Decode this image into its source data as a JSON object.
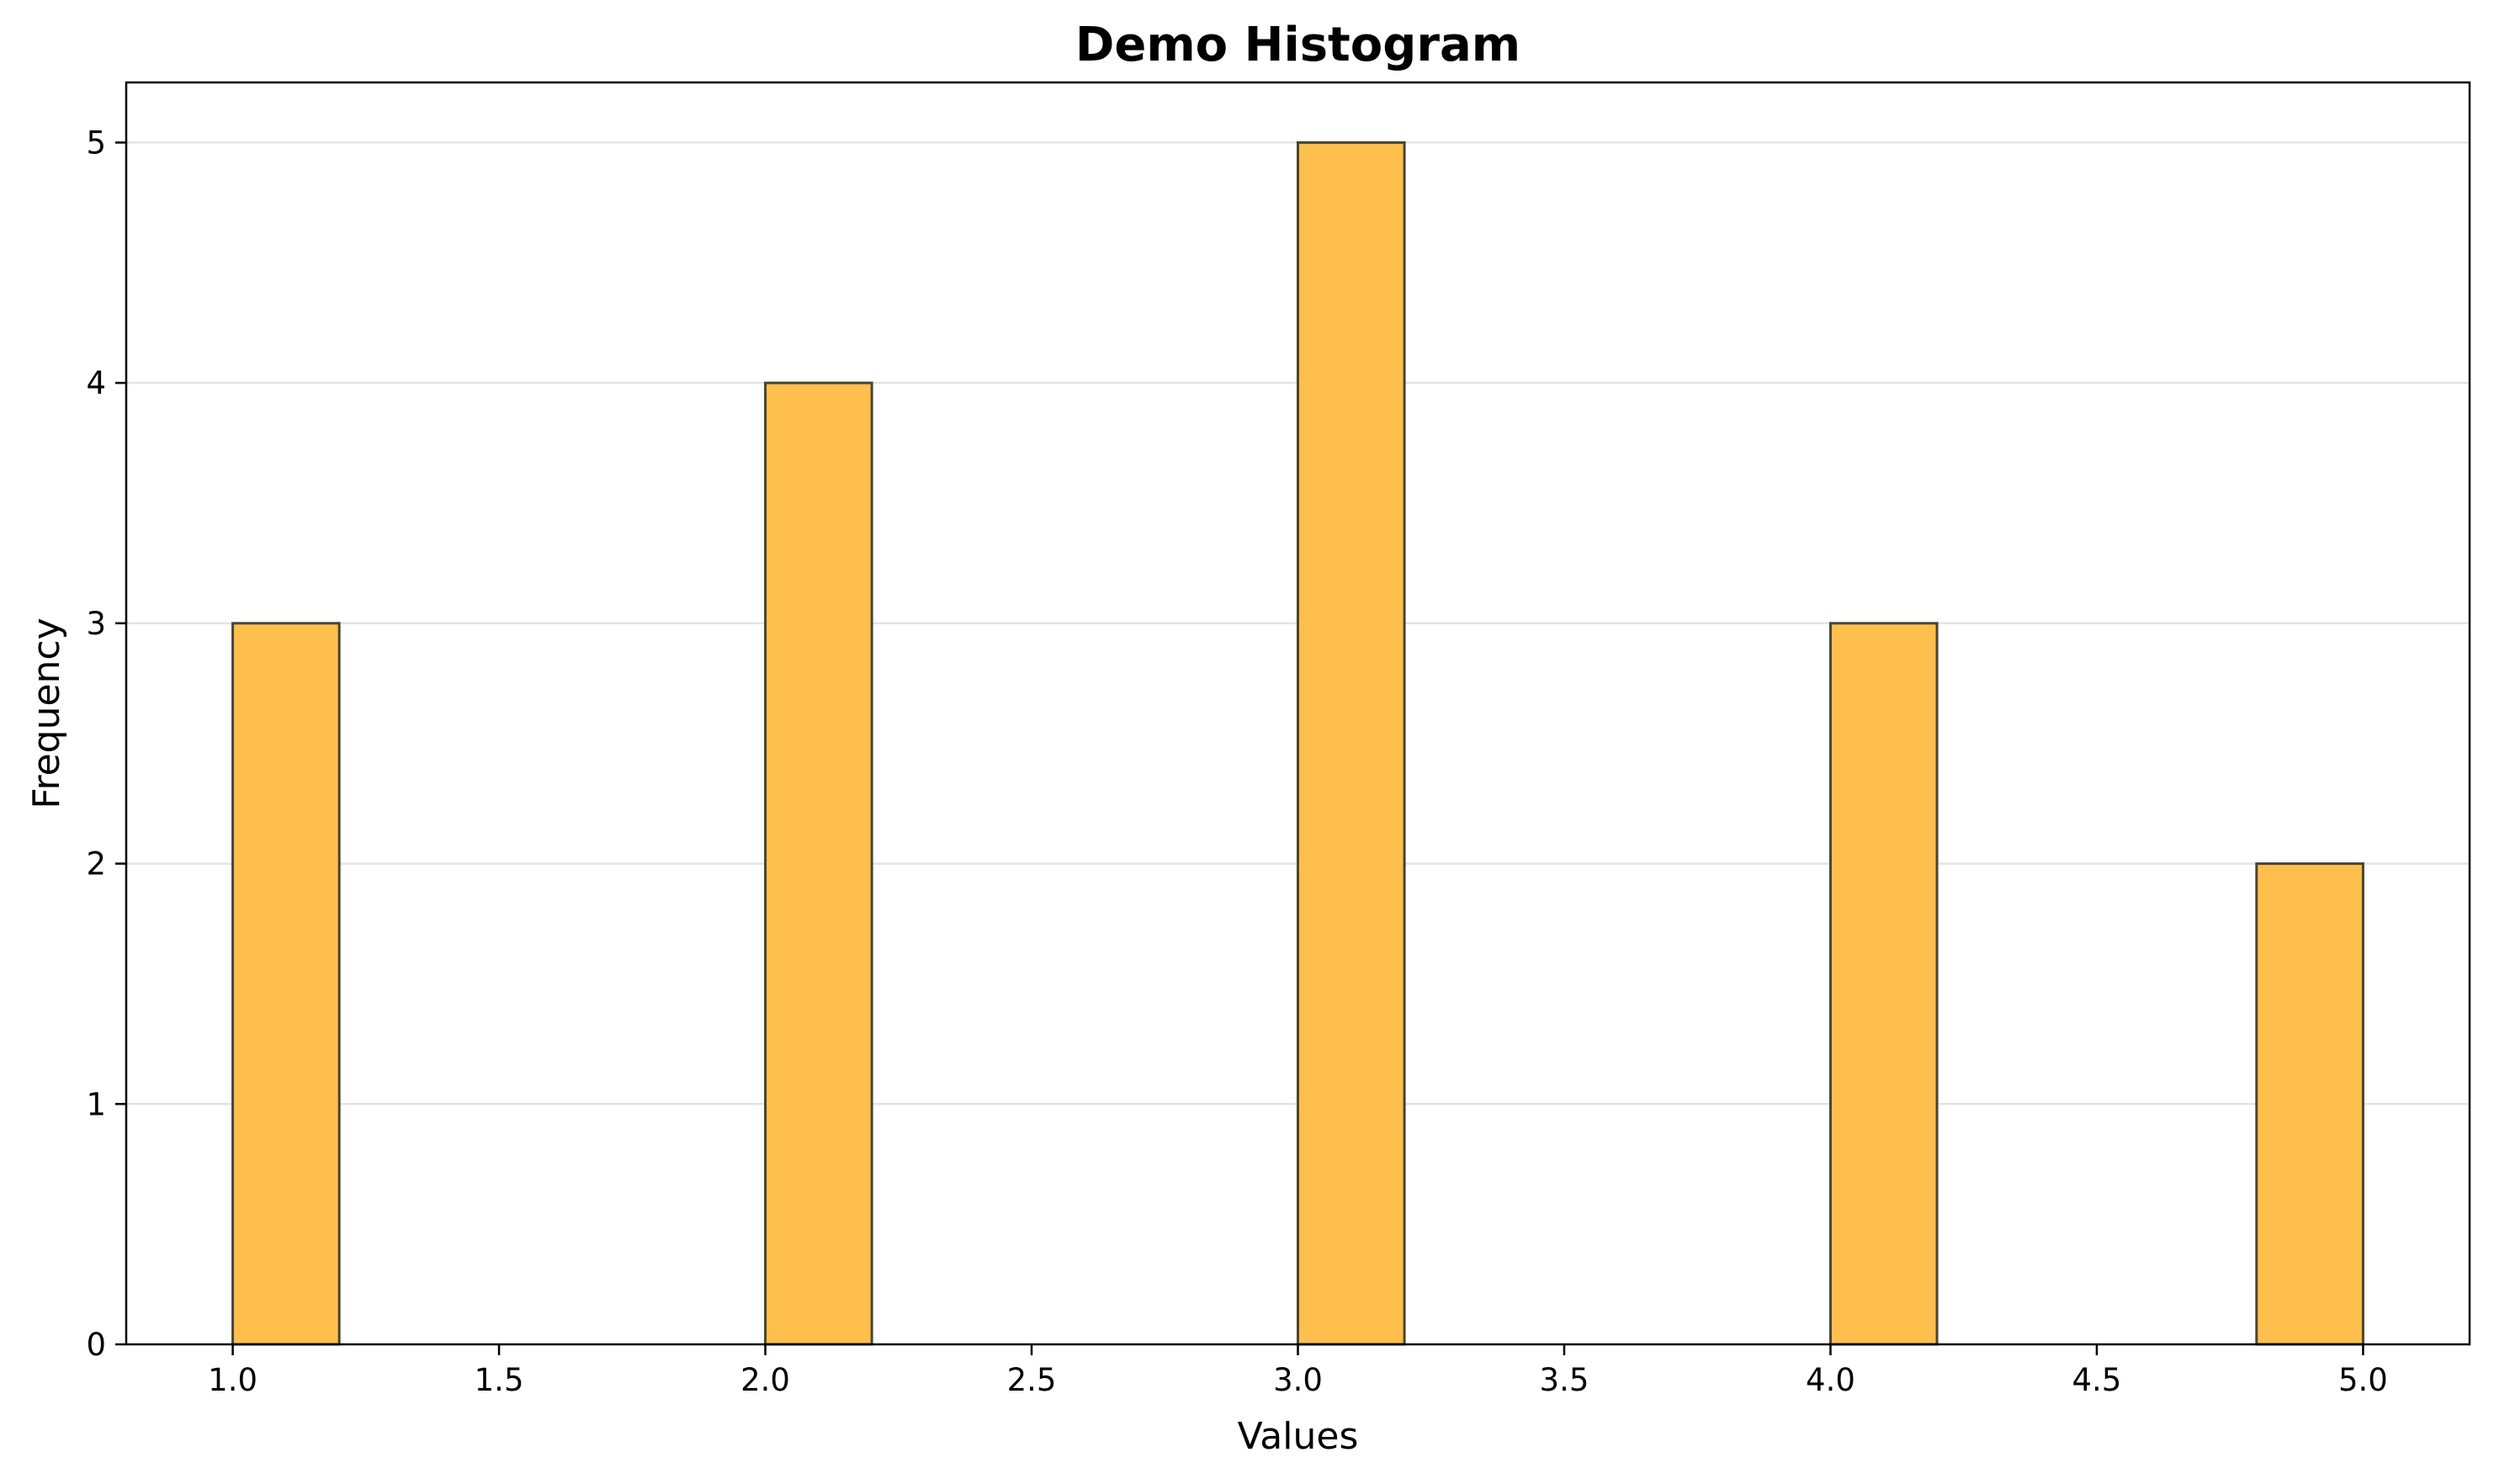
{
  "chart_data": {
    "type": "bar",
    "title": "Demo Histogram",
    "xlabel": "Values",
    "ylabel": "Frequency",
    "xlim": [
      0.8,
      5.2
    ],
    "ylim": [
      0,
      5.25
    ],
    "bin_width": 0.2,
    "bins": [
      {
        "x_start": 1.0,
        "x_end": 1.2,
        "count": 3
      },
      {
        "x_start": 2.0,
        "x_end": 2.2,
        "count": 4
      },
      {
        "x_start": 3.0,
        "x_end": 3.2,
        "count": 5
      },
      {
        "x_start": 4.0,
        "x_end": 4.2,
        "count": 3
      },
      {
        "x_start": 4.8,
        "x_end": 5.0,
        "count": 2
      }
    ],
    "x_ticks": [
      1.0,
      1.5,
      2.0,
      2.5,
      3.0,
      3.5,
      4.0,
      4.5,
      5.0
    ],
    "x_tick_labels": [
      "1.0",
      "1.5",
      "2.0",
      "2.5",
      "3.0",
      "3.5",
      "4.0",
      "4.5",
      "5.0"
    ],
    "y_ticks": [
      0,
      1,
      2,
      3,
      4,
      5
    ],
    "y_tick_labels": [
      "0",
      "1",
      "2",
      "3",
      "4",
      "5"
    ],
    "grid": "horizontal",
    "colors": {
      "bar_fill": "#FFBF4D",
      "bar_edge": "#4A4433",
      "grid": "#E3E3E3",
      "axis": "#000000"
    }
  }
}
